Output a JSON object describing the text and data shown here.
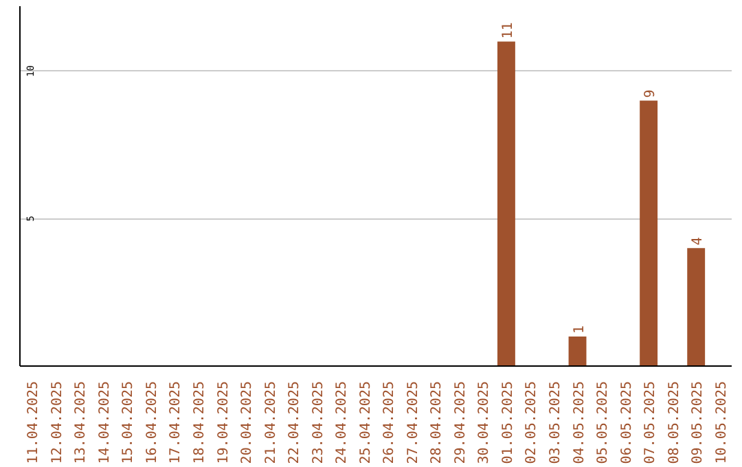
{
  "chart_data": {
    "type": "bar",
    "categories": [
      "11.04.2025",
      "12.04.2025",
      "13.04.2025",
      "14.04.2025",
      "15.04.2025",
      "16.04.2025",
      "17.04.2025",
      "18.04.2025",
      "19.04.2025",
      "20.04.2025",
      "21.04.2025",
      "22.04.2025",
      "23.04.2025",
      "24.04.2025",
      "25.04.2025",
      "26.04.2025",
      "27.04.2025",
      "28.04.2025",
      "29.04.2025",
      "30.04.2025",
      "01.05.2025",
      "02.05.2025",
      "03.05.2025",
      "04.05.2025",
      "05.05.2025",
      "06.05.2025",
      "07.05.2025",
      "08.05.2025",
      "09.05.2025",
      "10.05.2025"
    ],
    "values": [
      0,
      0,
      0,
      0,
      0,
      0,
      0,
      0,
      0,
      0,
      0,
      0,
      0,
      0,
      0,
      0,
      0,
      0,
      0,
      0,
      11,
      0,
      0,
      1,
      0,
      0,
      9,
      0,
      4,
      0
    ],
    "value_labels": [
      null,
      null,
      null,
      null,
      null,
      null,
      null,
      null,
      null,
      null,
      null,
      null,
      null,
      null,
      null,
      null,
      null,
      null,
      null,
      null,
      "11",
      null,
      null,
      "1",
      null,
      null,
      "9",
      null,
      "4",
      null
    ],
    "color": "#a0522d",
    "ylim": [
      0,
      12.2
    ],
    "yticks": [
      5,
      10
    ],
    "grid": "y"
  }
}
